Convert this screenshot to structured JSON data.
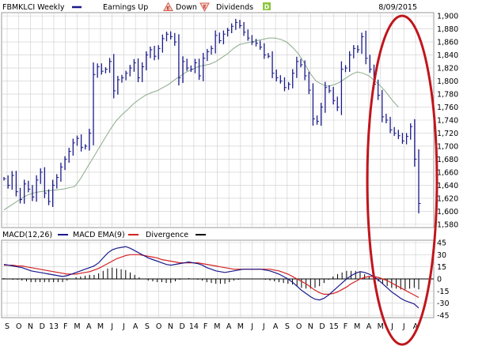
{
  "header": {
    "symbol_label": "FBMKLCI Weekly",
    "earnings_label": "Earnings Up",
    "down_label": "Down",
    "dividends_label": "Dividends",
    "date": "8/09/2015"
  },
  "macd_legend": {
    "macd_label": "MACD(12,26)",
    "ema_label": "MACD EMA(9)",
    "divergence_label": "Divergence"
  },
  "colors": {
    "price_bar": "#1a1a8c",
    "moving_average": "#8aaa8a",
    "macd_line": "#1a1a8c",
    "ema_line": "#d42020",
    "divergence_bar": "#000000",
    "grid": "#cccccc",
    "annotation_ellipse": "#c0161c",
    "earnings_marker": "#d45a4a",
    "dividend_marker": "#8cc63f"
  },
  "chart_data": [
    {
      "type": "ohlc",
      "title": "FBMKLCI Weekly",
      "frequency": "weekly",
      "x_tick_labels": [
        "S",
        "O",
        "N",
        "D",
        "13",
        "F",
        "M",
        "A",
        "M",
        "J",
        "J",
        "A",
        "S",
        "O",
        "N",
        "D",
        "14",
        "F",
        "M",
        "A",
        "M",
        "J",
        "J",
        "A",
        "S",
        "O",
        "N",
        "D",
        "15",
        "F",
        "M",
        "A",
        "M",
        "J",
        "J",
        "A"
      ],
      "y_tick_labels": [
        "1,900",
        "1,880",
        "1,860",
        "1,840",
        "1,820",
        "1,800",
        "1,780",
        "1,760",
        "1,740",
        "1,720",
        "1,700",
        "1,680",
        "1,660",
        "1,640",
        "1,620",
        "1,600",
        "1,580"
      ],
      "ylim": [
        1575,
        1905
      ],
      "grid": true,
      "moving_average_closes_approx": [
        1602,
        1608,
        1614,
        1620,
        1625,
        1628,
        1630,
        1631,
        1632,
        1633,
        1634,
        1636,
        1638,
        1650,
        1665,
        1680,
        1695,
        1710,
        1725,
        1738,
        1748,
        1756,
        1765,
        1772,
        1778,
        1782,
        1785,
        1790,
        1795,
        1802,
        1808,
        1814,
        1818,
        1822,
        1824,
        1826,
        1830,
        1836,
        1842,
        1850,
        1856,
        1858,
        1860,
        1862,
        1864,
        1866,
        1866,
        1864,
        1860,
        1852,
        1842,
        1828,
        1812,
        1800,
        1795,
        1792,
        1794,
        1798,
        1804,
        1810,
        1814,
        1812,
        1808,
        1800,
        1792,
        1782,
        1770,
        1760
      ],
      "series": [
        {
          "name": "FBMKLCI Weekly",
          "closes": [
            1650,
            1640,
            1655,
            1630,
            1618,
            1642,
            1634,
            1622,
            1648,
            1660,
            1628,
            1615,
            1640,
            1652,
            1668,
            1680,
            1692,
            1705,
            1712,
            1698,
            1700,
            1720,
            1810,
            1822,
            1815,
            1818,
            1830,
            1785,
            1802,
            1805,
            1812,
            1820,
            1828,
            1805,
            1822,
            1840,
            1848,
            1838,
            1850,
            1865,
            1872,
            1868,
            1860,
            1805,
            1830,
            1820,
            1818,
            1828,
            1808,
            1835,
            1845,
            1850,
            1870,
            1862,
            1872,
            1878,
            1884,
            1890,
            1885,
            1875,
            1866,
            1860,
            1858,
            1852,
            1840,
            1838,
            1812,
            1805,
            1800,
            1790,
            1795,
            1812,
            1830,
            1825,
            1808,
            1786,
            1742,
            1738,
            1760,
            1790,
            1785,
            1770,
            1760,
            1818,
            1820,
            1840,
            1850,
            1848,
            1868,
            1835,
            1818,
            1795,
            1778,
            1745,
            1740,
            1725,
            1720,
            1716,
            1708,
            1715,
            1730,
            1680,
            1612
          ]
        }
      ]
    },
    {
      "type": "macd",
      "title": "MACD(12,26)",
      "y_tick_labels": [
        "45",
        "30",
        "15",
        "0",
        "-15",
        "-30",
        "-45"
      ],
      "ylim": [
        -45,
        45
      ],
      "series": [
        {
          "name": "MACD(12,26)",
          "values": [
            18,
            17,
            16,
            15,
            14,
            12,
            10,
            9,
            8,
            7,
            6,
            5,
            4,
            3,
            4,
            6,
            8,
            10,
            12,
            14,
            16,
            20,
            26,
            32,
            36,
            38,
            39,
            40,
            38,
            35,
            32,
            29,
            26,
            24,
            22,
            20,
            18,
            17,
            18,
            19,
            20,
            21,
            20,
            19,
            17,
            14,
            12,
            10,
            9,
            8,
            9,
            10,
            11,
            12,
            12,
            12,
            12,
            12,
            11,
            10,
            8,
            6,
            3,
            0,
            -4,
            -9,
            -14,
            -18,
            -22,
            -25,
            -26,
            -24,
            -20,
            -15,
            -10,
            -5,
            0,
            4,
            7,
            9,
            8,
            6,
            3,
            -1,
            -6,
            -11,
            -16,
            -20,
            -24,
            -27,
            -29,
            -31,
            -36
          ]
        },
        {
          "name": "MACD EMA(9)",
          "values": [
            17,
            17,
            17,
            16,
            16,
            15,
            14,
            13,
            12,
            11,
            10,
            9,
            8,
            7,
            6,
            6,
            6,
            7,
            8,
            9,
            11,
            13,
            16,
            19,
            22,
            25,
            27,
            29,
            30,
            30,
            30,
            29,
            28,
            27,
            26,
            24,
            23,
            22,
            21,
            20,
            20,
            20,
            20,
            20,
            19,
            18,
            17,
            16,
            15,
            14,
            13,
            12,
            12,
            12,
            12,
            12,
            12,
            12,
            12,
            12,
            11,
            10,
            8,
            6,
            3,
            0,
            -3,
            -6,
            -10,
            -14,
            -17,
            -19,
            -19,
            -18,
            -16,
            -13,
            -10,
            -6,
            -3,
            0,
            2,
            3,
            3,
            2,
            0,
            -2,
            -5,
            -8,
            -11,
            -14,
            -17,
            -20,
            -23
          ]
        },
        {
          "name": "Divergence",
          "values": [
            1,
            0,
            -1,
            -1,
            -2,
            -3,
            -4,
            -4,
            -4,
            -4,
            -4,
            -4,
            -4,
            -4,
            -2,
            0,
            2,
            3,
            4,
            5,
            5,
            7,
            10,
            13,
            14,
            13,
            12,
            11,
            8,
            5,
            2,
            0,
            -2,
            -3,
            -4,
            -4,
            -5,
            -5,
            -3,
            -1,
            0,
            1,
            0,
            -1,
            -2,
            -4,
            -5,
            -6,
            -6,
            -6,
            -4,
            -2,
            -1,
            0,
            0,
            0,
            0,
            0,
            -1,
            -2,
            -3,
            -4,
            -5,
            -6,
            -7,
            -9,
            -11,
            -12,
            -12,
            -11,
            -9,
            -5,
            -1,
            3,
            6,
            8,
            10,
            10,
            10,
            9,
            6,
            3,
            0,
            -3,
            -6,
            -9,
            -11,
            -12,
            -13,
            -13,
            -12,
            -11,
            -13
          ]
        }
      ]
    }
  ]
}
